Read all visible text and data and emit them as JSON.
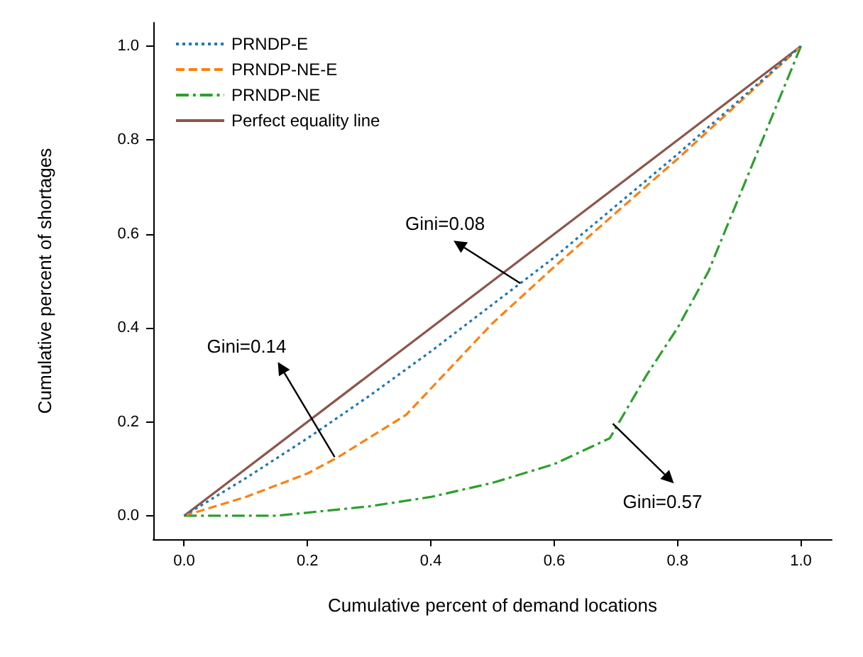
{
  "chart_data": {
    "type": "line",
    "xlabel": "Cumulative percent of demand locations",
    "ylabel": "Cumulative percent of shortages",
    "xlim": [
      -0.05,
      1.05
    ],
    "ylim": [
      -0.05,
      1.05
    ],
    "xticks": [
      {
        "value": 0,
        "label": "0.0"
      },
      {
        "value": 0.2,
        "label": "0.2"
      },
      {
        "value": 0.4,
        "label": "0.4"
      },
      {
        "value": 0.6,
        "label": "0.6"
      },
      {
        "value": 0.8,
        "label": "0.8"
      },
      {
        "value": 1,
        "label": "1.0"
      }
    ],
    "yticks": [
      {
        "value": 0,
        "label": "0.0"
      },
      {
        "value": 0.2,
        "label": "0.2"
      },
      {
        "value": 0.4,
        "label": "0.4"
      },
      {
        "value": 0.6,
        "label": "0.6"
      },
      {
        "value": 0.8,
        "label": "0.8"
      },
      {
        "value": 1,
        "label": "1.0"
      }
    ],
    "grid": false,
    "legend": "top left",
    "marker": "none",
    "series": [
      {
        "name": "PRNDP-E",
        "color": "#1f77b4",
        "line_style": "dotted",
        "x": [
          0,
          0.1,
          0.2,
          0.3,
          0.4,
          0.5,
          0.6,
          0.7,
          0.8,
          0.9,
          1
        ],
        "values": [
          0,
          0.08,
          0.165,
          0.255,
          0.35,
          0.45,
          0.55,
          0.66,
          0.77,
          0.885,
          1
        ]
      },
      {
        "name": "PRNDP-NE-E",
        "color": "#ff7f0e",
        "line_style": "dashed",
        "x": [
          0,
          0.1,
          0.2,
          0.25,
          0.36,
          0.5,
          0.6,
          0.7,
          0.8,
          0.9,
          1
        ],
        "values": [
          0,
          0.04,
          0.09,
          0.125,
          0.215,
          0.41,
          0.53,
          0.645,
          0.76,
          0.88,
          1
        ]
      },
      {
        "name": "PRNDP-NE",
        "color": "#2ca02c",
        "line_style": "dashdot",
        "x": [
          0,
          0.15,
          0.3,
          0.4,
          0.5,
          0.6,
          0.69,
          0.75,
          0.8,
          0.85,
          0.9,
          0.95,
          1
        ],
        "values": [
          0,
          0,
          0.02,
          0.04,
          0.07,
          0.11,
          0.165,
          0.3,
          0.4,
          0.52,
          0.68,
          0.84,
          1
        ]
      },
      {
        "name": "Perfect equality line",
        "color": "#8c564b",
        "line_style": "solid",
        "x": [
          0,
          1
        ],
        "values": [
          0,
          1
        ]
      }
    ],
    "annotations": [
      {
        "text": "Gini=0.08",
        "x": 0.545,
        "y": 0.495
      },
      {
        "text": "Gini=0.14",
        "x": 0.244,
        "y": 0.125
      },
      {
        "text": "Gini=0.57",
        "x": 0.695,
        "y": 0.196
      }
    ]
  }
}
